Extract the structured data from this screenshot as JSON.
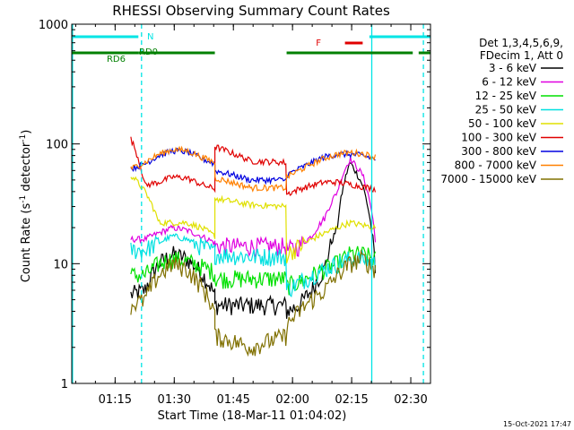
{
  "chart_data": {
    "type": "line",
    "title": "RHESSI Observing Summary Count Rates",
    "xlabel": "Start Time (18-Mar-11 01:04:02)",
    "ylabel_main": "Count Rate (s",
    "ylabel_sup1": "-1",
    "ylabel_mid": " detector",
    "ylabel_sup2": "-1",
    "ylabel_end": ")",
    "yscale": "log",
    "xlim": [
      64,
      155
    ],
    "ylim": [
      1,
      1000
    ],
    "x_ticks": [
      {
        "value": 75,
        "label": "01:15"
      },
      {
        "value": 90,
        "label": "01:30"
      },
      {
        "value": 105,
        "label": "01:45"
      },
      {
        "value": 120,
        "label": "02:00"
      },
      {
        "value": 135,
        "label": "02:15"
      },
      {
        "value": 150,
        "label": "02:30"
      }
    ],
    "y_ticks": [
      {
        "value": 1,
        "label": "1"
      },
      {
        "value": 10,
        "label": "10"
      },
      {
        "value": 100,
        "label": "100"
      },
      {
        "value": 1000,
        "label": "1000"
      }
    ],
    "legend_header": [
      "Det 1,3,4,5,6,9,",
      "FDecim 1, Att 0"
    ],
    "legend_position": "right",
    "timestamp": "15-Oct-2021 17:47",
    "flags": [
      {
        "label": "N",
        "color": "#00e5e5",
        "segments": [
          [
            64,
            80.9
          ],
          [
            139.5,
            155
          ]
        ]
      },
      {
        "label": "RD0",
        "color": "#008000",
        "segments": [
          [
            80.9,
            100.3
          ],
          [
            118.5,
            150.5
          ],
          [
            152,
            155
          ]
        ]
      },
      {
        "label": "RD6",
        "color": "#008000",
        "segments": [
          [
            64,
            80.9
          ]
        ]
      },
      {
        "label": "F",
        "color": "#e00000",
        "segments": [
          [
            133.3,
            137.8
          ]
        ]
      }
    ],
    "boundaries": [
      {
        "x": 64.2,
        "style": "solid"
      },
      {
        "x": 81.7,
        "style": "dashed"
      },
      {
        "x": 140.1,
        "style": "solid"
      },
      {
        "x": 153.2,
        "style": "dashed"
      }
    ],
    "intervals": [
      [
        79.0,
        100.3
      ],
      [
        100.3,
        118.5
      ],
      [
        118.5,
        141.0
      ]
    ],
    "series": [
      {
        "name": "3 - 6 keV",
        "color": "#000000",
        "values": [
          [
            5.5,
            6,
            10,
            12,
            11,
            8.5,
            5.5
          ],
          [
            4.5,
            4.5,
            4.5
          ],
          [
            4,
            4.5,
            6,
            9,
            20,
            70,
            45,
            8
          ]
        ]
      },
      {
        "name": "6 - 12 keV",
        "color": "#e000e0",
        "values": [
          [
            16,
            16,
            18,
            20,
            19,
            17,
            15
          ],
          [
            14,
            14,
            14
          ],
          [
            13,
            14,
            17,
            24,
            40,
            75,
            55,
            16
          ]
        ]
      },
      {
        "name": "12 - 25 keV",
        "color": "#00e000",
        "values": [
          [
            8,
            8,
            10,
            11,
            10.5,
            9.5,
            8.5
          ],
          [
            7.5,
            7.5,
            7.5
          ],
          [
            6.5,
            7,
            8,
            9,
            10,
            12,
            12,
            11
          ]
        ]
      },
      {
        "name": "25 - 50 keV",
        "color": "#00e0e0",
        "values": [
          [
            13,
            13,
            15,
            17,
            16,
            14,
            12.5
          ],
          [
            12,
            11.5,
            11.5
          ],
          [
            6,
            7,
            8,
            9,
            10,
            11,
            11,
            10
          ]
        ]
      },
      {
        "name": "50 - 100 keV",
        "color": "#e0e000",
        "values": [
          [
            55,
            40,
            22,
            22,
            22,
            20,
            17
          ],
          [
            35,
            31,
            30
          ],
          [
            12,
            14,
            16,
            18,
            20,
            22,
            21,
            20
          ]
        ]
      },
      {
        "name": "100 - 300 keV",
        "color": "#e00000",
        "values": [
          [
            110,
            45,
            48,
            53,
            52,
            46,
            42
          ],
          [
            95,
            72,
            70
          ],
          [
            38,
            42,
            45,
            48,
            48,
            46,
            44,
            42
          ]
        ]
      },
      {
        "name": "300 - 800 keV",
        "color": "#0000e0",
        "values": [
          [
            62,
            68,
            80,
            88,
            86,
            76,
            68
          ],
          [
            60,
            50,
            50
          ],
          [
            55,
            62,
            70,
            78,
            82,
            82,
            80,
            75
          ]
        ]
      },
      {
        "name": "800 - 7000 keV",
        "color": "#ff8000",
        "values": [
          [
            62,
            70,
            82,
            90,
            88,
            78,
            70
          ],
          [
            52,
            43,
            43
          ],
          [
            53,
            60,
            68,
            76,
            82,
            85,
            83,
            78
          ]
        ]
      },
      {
        "name": "7000 - 15000 keV",
        "color": "#807000",
        "values": [
          [
            4.5,
            5,
            8,
            10,
            9,
            6.5,
            4
          ],
          [
            2.5,
            2,
            2.5
          ],
          [
            3,
            4,
            5,
            6,
            8,
            10,
            11,
            9
          ]
        ]
      }
    ]
  }
}
